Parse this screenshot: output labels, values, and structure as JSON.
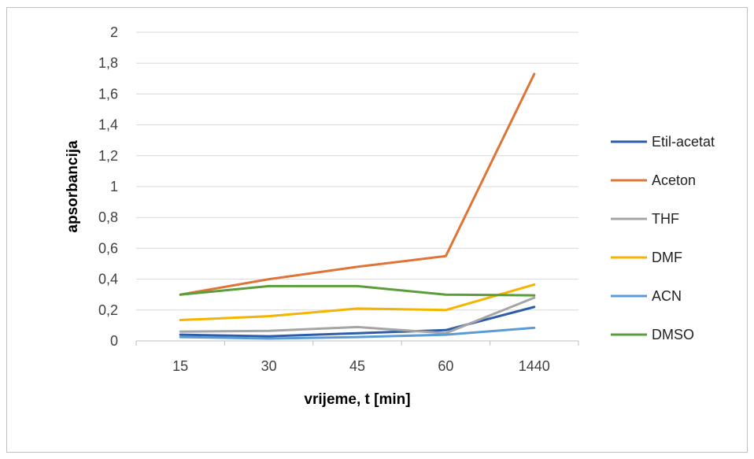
{
  "chart_data": {
    "type": "line",
    "title": "",
    "xlabel": "vrijeme, t [min]",
    "ylabel": "apsorbancija",
    "categories": [
      "15",
      "30",
      "45",
      "60",
      "1440"
    ],
    "ylim": [
      0,
      2
    ],
    "yticks": [
      "0",
      "0,2",
      "0,4",
      "0,6",
      "0,8",
      "1",
      "1,2",
      "1,4",
      "1,6",
      "1,8",
      "2"
    ],
    "grid": true,
    "legend_position": "right",
    "series": [
      {
        "name": "Etil-acetat",
        "color": "#2e5ea9",
        "values": [
          0.04,
          0.03,
          0.05,
          0.07,
          0.22
        ]
      },
      {
        "name": "Aceton",
        "color": "#de7536",
        "values": [
          0.3,
          0.4,
          0.48,
          0.55,
          1.73
        ]
      },
      {
        "name": "THF",
        "color": "#a5a5a5",
        "values": [
          0.06,
          0.065,
          0.09,
          0.05,
          0.28
        ]
      },
      {
        "name": "DMF",
        "color": "#f4b400",
        "values": [
          0.135,
          0.16,
          0.21,
          0.2,
          0.365
        ]
      },
      {
        "name": "ACN",
        "color": "#5b9bd5",
        "values": [
          0.025,
          0.015,
          0.025,
          0.04,
          0.085
        ]
      },
      {
        "name": "DMSO",
        "color": "#5a9e3a",
        "values": [
          0.3,
          0.355,
          0.355,
          0.3,
          0.295
        ]
      }
    ]
  }
}
